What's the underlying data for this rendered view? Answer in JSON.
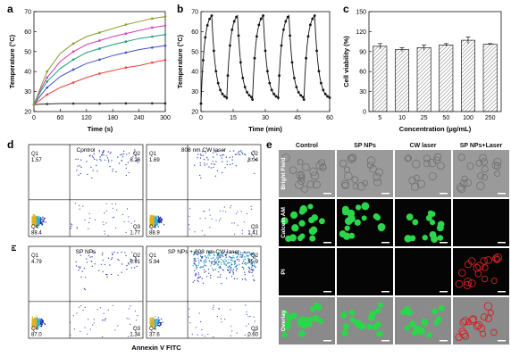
{
  "panels": {
    "a": {
      "letter": "a"
    },
    "b": {
      "letter": "b"
    },
    "c": {
      "letter": "c"
    },
    "d": {
      "letter": "d"
    },
    "e": {
      "letter": "e"
    }
  },
  "chart_data": [
    {
      "id": "a",
      "type": "line",
      "xlabel": "Time (s)",
      "ylabel": "Temperature (°C)",
      "xlim": [
        0,
        300
      ],
      "ylim": [
        20,
        70
      ],
      "xticks": [
        0,
        60,
        120,
        180,
        240,
        300
      ],
      "yticks": [
        20,
        30,
        40,
        50,
        60,
        70
      ],
      "x": [
        0,
        15,
        30,
        60,
        90,
        120,
        150,
        180,
        210,
        240,
        270,
        300
      ],
      "series": [
        {
          "color": "#2a2a2a",
          "values": [
            23.5,
            23.7,
            23.8,
            24,
            24,
            24,
            24,
            24.1,
            24.1,
            24.1,
            24.1,
            24.1
          ]
        },
        {
          "color": "#e8443a",
          "values": [
            23.5,
            26,
            28.5,
            32,
            34.5,
            37,
            39,
            40.5,
            42,
            43,
            44.5,
            45.8
          ]
        },
        {
          "color": "#3f51c8",
          "values": [
            23.5,
            28,
            32,
            37.5,
            41,
            44,
            46,
            48,
            49.5,
            51,
            52,
            53
          ]
        },
        {
          "color": "#1fa07a",
          "values": [
            23.5,
            30,
            35,
            41.5,
            46,
            49.5,
            51.5,
            53.5,
            55,
            56.5,
            57.5,
            58.5
          ]
        },
        {
          "color": "#d23fbf",
          "values": [
            23.5,
            31,
            37,
            45,
            50,
            53.5,
            55.5,
            57.5,
            59,
            60.5,
            62,
            63
          ]
        },
        {
          "color": "#8a9a2a",
          "values": [
            23.5,
            32,
            40,
            49,
            54,
            57.5,
            59.5,
            61.5,
            63.5,
            65,
            66.5,
            67.5
          ]
        }
      ]
    },
    {
      "id": "b",
      "type": "line",
      "xlabel": "Time (min)",
      "ylabel": "Temperature (°C)",
      "xlim": [
        0,
        60
      ],
      "ylim": [
        20,
        70
      ],
      "xticks": [
        0,
        15,
        30,
        45,
        60
      ],
      "yticks": [
        20,
        30,
        40,
        50,
        60,
        70
      ],
      "cycle_start": [
        0,
        12,
        24,
        36,
        48
      ],
      "cycle_heating_min": 5,
      "cycle_length_min": 12,
      "t_min": 24,
      "t_max": 68,
      "t_cool_end": 26
    },
    {
      "id": "c",
      "type": "bar",
      "xlabel": "Concentration (μg/mL)",
      "ylabel": "Cell viability (%)",
      "ylim": [
        0,
        150
      ],
      "yticks": [
        0,
        30,
        60,
        90,
        120,
        150
      ],
      "categories": [
        "5",
        "10",
        "25",
        "50",
        "100",
        "250"
      ],
      "values": [
        98,
        93,
        96,
        100,
        107,
        101
      ],
      "errors": [
        4,
        3,
        4,
        2,
        5,
        1
      ]
    }
  ],
  "flow": {
    "ylabel": "PI",
    "xlabel": "Annexin V FITC",
    "plots": [
      {
        "title": "Control",
        "q1_label": "Q1",
        "q1": "1.57",
        "q2_label": "Q2",
        "q2": "8.26",
        "q3_label": "Q3",
        "q3": "1.77",
        "q4_label": "Q4",
        "q4": "88.4"
      },
      {
        "title": "808 nm CW laser",
        "q1_label": "Q1",
        "q1": "1.69",
        "q2_label": "Q2",
        "q2": "8.04",
        "q3_label": "Q3",
        "q3": "1.41",
        "q4_label": "Q4",
        "q4": "88.9"
      },
      {
        "title": "SP NPs",
        "q1_label": "Q1",
        "q1": "4.79",
        "q2_label": "Q2",
        "q2": "6.91",
        "q3_label": "Q3",
        "q3": "1.34",
        "q4_label": "Q4",
        "q4": "87.0"
      },
      {
        "title": "SP NPs + 808 nm CW laser",
        "q1_label": "Q1",
        "q1": "5.94",
        "q2_label": "Q2",
        "q2": "55.9",
        "q3_label": "Q3",
        "q3": "0.60",
        "q4_label": "Q4",
        "q4": "37.6"
      }
    ]
  },
  "microscopy": {
    "columns": [
      "Control",
      "SP NPs",
      "CW laser",
      "SP NPs+Laser"
    ],
    "rows": [
      "Bright Field",
      "Calcein AM",
      "PI",
      "Overlay"
    ],
    "colors": {
      "bright": "#9a9a9a",
      "calcein": "#2bd64a",
      "pi": "#d42222",
      "dark": "#050505"
    }
  }
}
